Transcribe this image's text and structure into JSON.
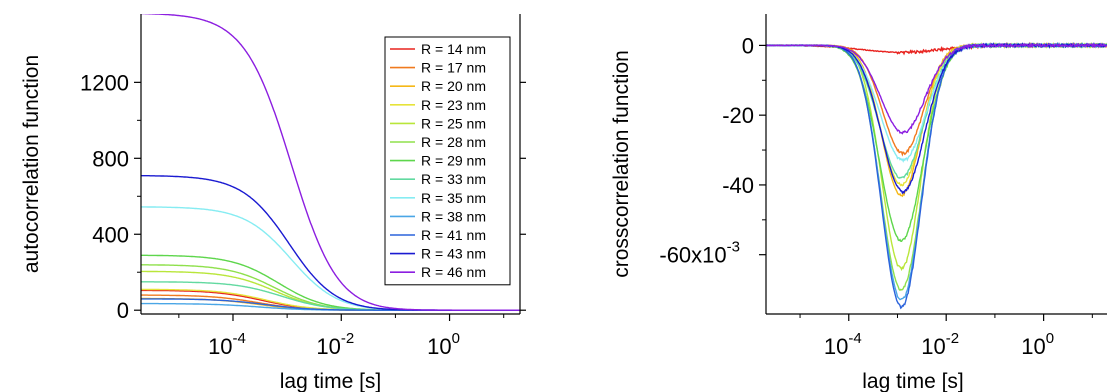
{
  "chart_data": [
    {
      "type": "line",
      "xlabel": "lag time [s]",
      "ylabel": "autocorrelation function",
      "x_scale": "log",
      "xlim": [
        2e-06,
        20
      ],
      "ylim": [
        -20,
        1560
      ],
      "x_ticks": [
        {
          "value": 0.0001,
          "base": "10",
          "exp": "-4"
        },
        {
          "value": 0.01,
          "base": "10",
          "exp": "-2"
        },
        {
          "value": 1,
          "base": "10",
          "exp": "0"
        }
      ],
      "y_ticks": [
        {
          "value": 0,
          "label": "0"
        },
        {
          "value": 400,
          "label": "400"
        },
        {
          "value": 800,
          "label": "800"
        },
        {
          "value": 1200,
          "label": "1200"
        }
      ],
      "legend_position": "top-right",
      "series": [
        {
          "name": "R = 14 nm",
          "color": "#e8231f",
          "amplitude": 105,
          "tau": 0.00035
        },
        {
          "name": "R = 17 nm",
          "color": "#f07a1f",
          "amplitude": 80,
          "tau": 0.0003
        },
        {
          "name": "R = 20 nm",
          "color": "#f5b818",
          "amplitude": 62,
          "tau": 0.0003
        },
        {
          "name": "R = 23 nm",
          "color": "#e6e33a",
          "amplitude": 110,
          "tau": 0.0004
        },
        {
          "name": "R = 25 nm",
          "color": "#b9e63a",
          "amplitude": 205,
          "tau": 0.0006
        },
        {
          "name": "R = 28 nm",
          "color": "#8fe04c",
          "amplitude": 240,
          "tau": 0.0006
        },
        {
          "name": "R = 29 nm",
          "color": "#5ed64c",
          "amplitude": 290,
          "tau": 0.0007
        },
        {
          "name": "R = 33 nm",
          "color": "#62d9a0",
          "amplitude": 150,
          "tau": 0.0008
        },
        {
          "name": "R = 35 nm",
          "color": "#86ecf2",
          "amplitude": 545,
          "tau": 0.0012
        },
        {
          "name": "R = 38 nm",
          "color": "#4aa6e6",
          "amplitude": 35,
          "tau": 0.0003
        },
        {
          "name": "R = 41 nm",
          "color": "#2b63db",
          "amplitude": 60,
          "tau": 0.0004
        },
        {
          "name": "R = 43 nm",
          "color": "#1a1ad1",
          "amplitude": 710,
          "tau": 0.0011
        },
        {
          "name": "R = 46 nm",
          "color": "#8c1ee0",
          "amplitude": 1565,
          "tau": 0.0012
        }
      ]
    },
    {
      "type": "line",
      "xlabel": "lag time [s]",
      "ylabel": "crosscorrelation function",
      "x_scale": "log",
      "xlim": [
        2e-06,
        20
      ],
      "ylim": [
        -0.077,
        0.009
      ],
      "x_ticks": [
        {
          "value": 0.0001,
          "base": "10",
          "exp": "-4"
        },
        {
          "value": 0.01,
          "base": "10",
          "exp": "-2"
        },
        {
          "value": 1,
          "base": "10",
          "exp": "0"
        }
      ],
      "y_ticks": [
        {
          "value": 0,
          "label": "0"
        },
        {
          "value": -0.02,
          "label": "-20"
        },
        {
          "value": -0.04,
          "label": "-40"
        },
        {
          "value": -0.06,
          "label": "-60x10",
          "exp": "-3"
        }
      ],
      "series": [
        {
          "name": "R = 14 nm",
          "color": "#e8231f",
          "min": -0.002,
          "center": 0.0012,
          "width": 0.8
        },
        {
          "name": "R = 17 nm",
          "color": "#f07a1f",
          "min": -0.031,
          "center": 0.0013,
          "width": 0.42
        },
        {
          "name": "R = 20 nm",
          "color": "#f5b818",
          "min": -0.043,
          "center": 0.0012,
          "width": 0.4
        },
        {
          "name": "R = 23 nm",
          "color": "#e6e33a",
          "min": -0.04,
          "center": 0.0012,
          "width": 0.42
        },
        {
          "name": "R = 25 nm",
          "color": "#b9e63a",
          "min": -0.064,
          "center": 0.0012,
          "width": 0.4
        },
        {
          "name": "R = 28 nm",
          "color": "#8fe04c",
          "min": -0.07,
          "center": 0.0012,
          "width": 0.42
        },
        {
          "name": "R = 29 nm",
          "color": "#5ed64c",
          "min": -0.056,
          "center": 0.0012,
          "width": 0.44
        },
        {
          "name": "R = 33 nm",
          "color": "#62d9a0",
          "min": -0.038,
          "center": 0.0012,
          "width": 0.45
        },
        {
          "name": "R = 35 nm",
          "color": "#86ecf2",
          "min": -0.033,
          "center": 0.0013,
          "width": 0.46
        },
        {
          "name": "R = 38 nm",
          "color": "#4aa6e6",
          "min": -0.073,
          "center": 0.0012,
          "width": 0.41
        },
        {
          "name": "R = 41 nm",
          "color": "#2b63db",
          "min": -0.075,
          "center": 0.0012,
          "width": 0.41
        },
        {
          "name": "R = 43 nm",
          "color": "#1a1ad1",
          "min": -0.042,
          "center": 0.0013,
          "width": 0.44
        },
        {
          "name": "R = 46 nm",
          "color": "#8c1ee0",
          "min": -0.025,
          "center": 0.0013,
          "width": 0.45
        }
      ]
    }
  ]
}
